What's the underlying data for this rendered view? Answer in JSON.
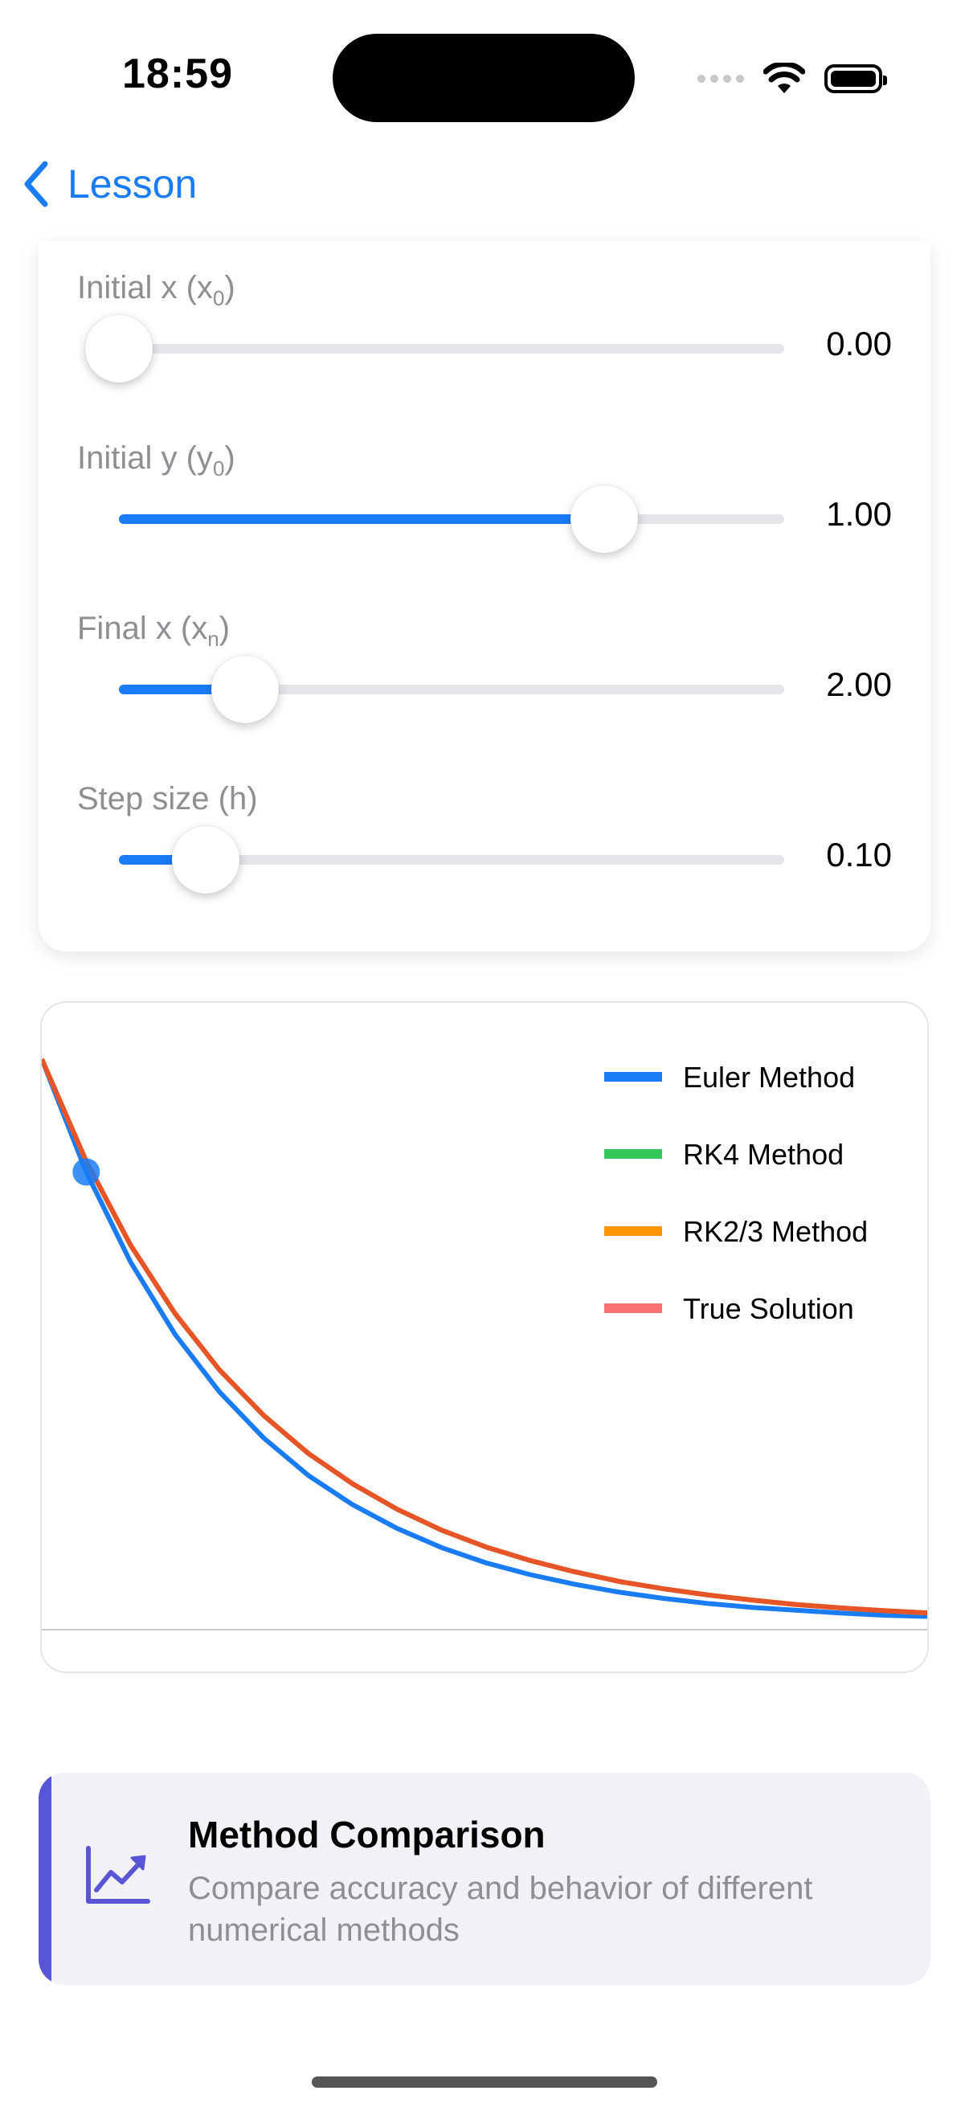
{
  "status": {
    "time": "18:59"
  },
  "nav": {
    "back_label": "Lesson"
  },
  "sliders": [
    {
      "label": "Initial x (x",
      "sub": "0",
      "suffix": ")",
      "value": "0.00",
      "fraction": 0.0
    },
    {
      "label": "Initial y (y",
      "sub": "0",
      "suffix": ")",
      "value": "1.00",
      "fraction": 0.73
    },
    {
      "label": "Final x (x",
      "sub": "n",
      "suffix": ")",
      "value": "2.00",
      "fraction": 0.19
    },
    {
      "label": "Step size (h)",
      "sub": "",
      "suffix": "",
      "value": "0.10",
      "fraction": 0.13
    }
  ],
  "chart_data": {
    "type": "line",
    "x_range": [
      0,
      2
    ],
    "y_range": [
      0,
      1
    ],
    "h": 0.1,
    "series": [
      {
        "name": "Euler Method",
        "color": "#1a7cf5",
        "x": [
          0,
          0.1,
          0.2,
          0.3,
          0.4,
          0.5,
          0.6,
          0.7,
          0.8,
          0.9,
          1.0,
          1.1,
          1.2,
          1.3,
          1.4,
          1.5,
          1.6,
          1.7,
          1.8,
          1.9,
          2.0
        ],
        "y": [
          1,
          0.8,
          0.64,
          0.512,
          0.41,
          0.328,
          0.262,
          0.21,
          0.168,
          0.134,
          0.107,
          0.086,
          0.069,
          0.055,
          0.044,
          0.035,
          0.028,
          0.023,
          0.018,
          0.014,
          0.012
        ]
      },
      {
        "name": "RK4 Method",
        "color": "#34c759",
        "x": [
          0,
          0.1,
          0.2,
          0.3,
          0.4,
          0.5,
          0.6,
          0.7,
          0.8,
          0.9,
          1.0,
          1.1,
          1.2,
          1.3,
          1.4,
          1.5,
          1.6,
          1.7,
          1.8,
          1.9,
          2.0
        ],
        "y": [
          1,
          0.819,
          0.67,
          0.549,
          0.449,
          0.368,
          0.301,
          0.247,
          0.202,
          0.165,
          0.135,
          0.111,
          0.091,
          0.074,
          0.061,
          0.05,
          0.041,
          0.033,
          0.027,
          0.022,
          0.018
        ]
      },
      {
        "name": "RK2/3 Method",
        "color": "#ff9500",
        "x": [
          0,
          0.1,
          0.2,
          0.3,
          0.4,
          0.5,
          0.6,
          0.7,
          0.8,
          0.9,
          1.0,
          1.1,
          1.2,
          1.3,
          1.4,
          1.5,
          1.6,
          1.7,
          1.8,
          1.9,
          2.0
        ],
        "y": [
          1,
          0.819,
          0.67,
          0.549,
          0.449,
          0.368,
          0.301,
          0.247,
          0.202,
          0.165,
          0.135,
          0.111,
          0.091,
          0.074,
          0.061,
          0.05,
          0.041,
          0.033,
          0.027,
          0.022,
          0.018
        ]
      },
      {
        "name": "True Solution",
        "color": "#e8542a",
        "legend_color": "#f87171",
        "x": [
          0,
          0.1,
          0.2,
          0.3,
          0.4,
          0.5,
          0.6,
          0.7,
          0.8,
          0.9,
          1.0,
          1.1,
          1.2,
          1.3,
          1.4,
          1.5,
          1.6,
          1.7,
          1.8,
          1.9,
          2.0
        ],
        "y": [
          1,
          0.819,
          0.67,
          0.549,
          0.449,
          0.368,
          0.301,
          0.247,
          0.202,
          0.165,
          0.135,
          0.111,
          0.091,
          0.074,
          0.061,
          0.05,
          0.041,
          0.033,
          0.027,
          0.022,
          0.018
        ]
      }
    ],
    "highlight_point": {
      "x": 0.1,
      "y": 0.8
    },
    "legend_position": "top-right",
    "grid": false
  },
  "method_card": {
    "title": "Method Comparison",
    "description": "Compare accuracy and behavior of different numerical methods",
    "accent_color": "#5856d6",
    "icon": "chart-line-uptrend-icon"
  }
}
